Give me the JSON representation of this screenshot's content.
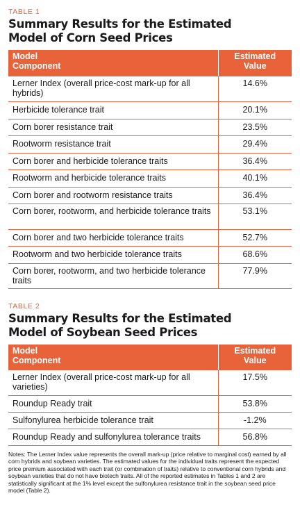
{
  "table1": {
    "label": "TABLE 1",
    "title_line1": "Summary Results for the Estimated",
    "title_line2": "Model of Corn Seed Prices",
    "header_component_line1": "Model",
    "header_component_line2": "Component",
    "header_value_line1": "Estimated",
    "header_value_line2": "Value",
    "rows": [
      {
        "component": "Lerner Index (overall price-cost mark-up for all hybrids)",
        "value": "14.6%"
      },
      {
        "component": "Herbicide tolerance trait",
        "value": "20.1%"
      },
      {
        "component": "Corn borer resistance trait",
        "value": "23.5%"
      },
      {
        "component": "Rootworm resistance trait",
        "value": "29.4%"
      },
      {
        "component": "Corn borer and herbicide tolerance traits",
        "value": "36.4%"
      },
      {
        "component": "Rootworm and herbicide tolerance traits",
        "value": "40.1%"
      },
      {
        "component": "Corn borer and rootworm resistance traits",
        "value": "36.4%"
      },
      {
        "component": "Corn borer, rootworm, and herbicide tolerance traits",
        "value": "53.1%"
      },
      {
        "component": "Corn borer and two herbicide tolerance traits",
        "value": "52.7%"
      },
      {
        "component": "Rootworm and two herbicide tolerance traits",
        "value": "68.6%"
      },
      {
        "component": "Corn borer, rootworm, and two herbicide tolerance traits",
        "value": "77.9%"
      }
    ]
  },
  "table2": {
    "label": "TABLE 2",
    "title_line1": "Summary Results for the Estimated",
    "title_line2": "Model of Soybean Seed Prices",
    "header_component_line1": "Model",
    "header_component_line2": "Component",
    "header_value_line1": "Estimated",
    "header_value_line2": "Value",
    "rows": [
      {
        "component": "Lerner Index (overall price-cost mark-up for all varieties)",
        "value": "17.5%"
      },
      {
        "component": "Roundup Ready trait",
        "value": "53.8%"
      },
      {
        "component": "Sulfonylurea herbicide tolerance trait",
        "value": "-1.2%"
      },
      {
        "component": "Roundup Ready and sulfonylurea tolerance traits",
        "value": "56.8%"
      }
    ]
  },
  "notes": "Notes: The Lerner Index value represents the overall mark-up (price relative to marginal cost) earned by all corn hybrids and soybean varieties. The estimated values for the individual traits represent the expected price premium associated with each trait (or combination of traits) relative to conventional corn hybrids and soybean varieties that do not have biotech traits. All of the reported estimates in Tables 1 and 2 are statistically significant at the 1% level except the sulfonylurea resistance trait in the soybean seed price model (Table 2).",
  "colors": {
    "accent": "#e8623a",
    "text": "#1a1a1a",
    "background": "#ffffff"
  }
}
